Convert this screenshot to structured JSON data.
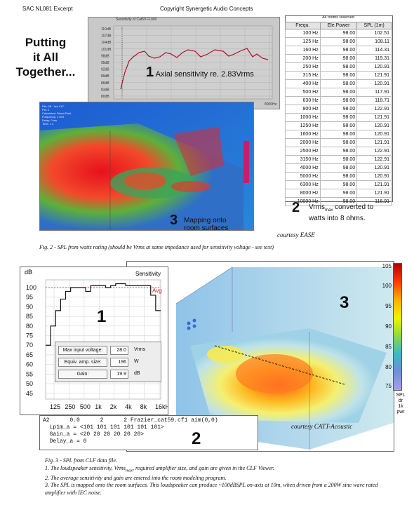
{
  "header": {
    "left": "SAC NL081 Excerpt",
    "right": "Copyright Synergetic Audio Concepts"
  },
  "side_title": [
    "Putting",
    "it All",
    "Together..."
  ],
  "axial_chart": {
    "title": "Sensitivity of Cat59 F1000",
    "number": "1",
    "label": "Axial sensitivity re. 2.83Vrms",
    "y_ticks": [
      "110dB",
      "107dB",
      "104dB",
      "101dB",
      "98dB",
      "95dB",
      "92dB",
      "89dB",
      "86dB",
      "83dB",
      "80dB"
    ],
    "x_ticks": [
      "125Hz",
      "250Hz",
      "500Hz",
      "1000Hz",
      "2000Hz",
      "4000Hz",
      "8000Hz"
    ]
  },
  "ease_map": {
    "number": "3",
    "caption": [
      "Mapping onto",
      "room surfaces"
    ],
    "info_lines": [
      "File: 08 : Yes CLF",
      "Pct: 2",
      "Calculated: Direct Field",
      "Frequency: 1 kHz",
      "Delay: 0 ms",
      "Time: 1 s"
    ]
  },
  "spl_table": {
    "title": "All rooms reserved",
    "columns": [
      "Frequ.",
      "Ele.Power",
      "SPL (1m)"
    ],
    "rows": [
      [
        "100 Hz",
        "98.00",
        "102.51"
      ],
      [
        "125 Hz",
        "98.00",
        "108.11"
      ],
      [
        "160 Hz",
        "98.00",
        "114.31"
      ],
      [
        "200 Hz",
        "98.00",
        "119.31"
      ],
      [
        "250 Hz",
        "98.00",
        "120.91"
      ],
      [
        "315 Hz",
        "98.00",
        "121.91"
      ],
      [
        "400 Hz",
        "98.00",
        "120.91"
      ],
      [
        "500 Hz",
        "98.00",
        "117.91"
      ],
      [
        "630 Hz",
        "98.00",
        "118.71"
      ],
      [
        "800 Hz",
        "98.00",
        "122.91"
      ],
      [
        "1000 Hz",
        "98.00",
        "121.91"
      ],
      [
        "1250 Hz",
        "98.00",
        "120.91"
      ],
      [
        "1600 Hz",
        "98.00",
        "120.91"
      ],
      [
        "2000 Hz",
        "98.00",
        "121.91"
      ],
      [
        "2500 Hz",
        "98.00",
        "122.91"
      ],
      [
        "3150 Hz",
        "98.00",
        "122.91"
      ],
      [
        "4000 Hz",
        "98.00",
        "120.91"
      ],
      [
        "5000 Hz",
        "98.00",
        "120.91"
      ],
      [
        "6300 Hz",
        "98.00",
        "121.91"
      ],
      [
        "8000 Hz",
        "98.00",
        "121.91"
      ],
      [
        "10000 Hz",
        "98.00",
        "116.91"
      ]
    ],
    "note_number": "2",
    "note_line1_pre": "Vrms",
    "note_line1_sub": "max",
    "note_line1_post": " converted to",
    "note_line2": "watts into 8 ohms."
  },
  "courtesy_ease": "courtesy EASE",
  "fig2_caption": "Fig. 2 - SPL from watts rating (should be Vrms at same impedance used for sensitivity voltage - see text)",
  "sensitivity_chart": {
    "dB_label": "dB",
    "title": "Sensitivity",
    "avg_label": "Avg",
    "number": "1",
    "y_ticks": [
      "100",
      "95",
      "90",
      "85",
      "80",
      "75",
      "70",
      "65",
      "60",
      "55",
      "50",
      "45"
    ],
    "x_ticks": [
      "125",
      "250",
      "500",
      "1k",
      "2k",
      "4k",
      "8k",
      "16kHz"
    ],
    "chart_data": {
      "type": "line",
      "x": [
        "100",
        "125",
        "160",
        "200",
        "250",
        "315",
        "400",
        "500",
        "630",
        "800",
        "1k",
        "1.25k",
        "1.6k",
        "2k",
        "2.5k",
        "3.15k",
        "4k",
        "5k",
        "6.3k",
        "8k",
        "10k",
        "12.5k",
        "16k"
      ],
      "series": [
        {
          "values": [
            70,
            80,
            88,
            94,
            98,
            100,
            100,
            100,
            98,
            101,
            101,
            101,
            100,
            101,
            102,
            102,
            101,
            101,
            101,
            101,
            101,
            96,
            88
          ]
        }
      ],
      "ylim": [
        42,
        104
      ],
      "avg": 100
    }
  },
  "clf_viewer": {
    "rows": [
      {
        "label": "Max input voltage:",
        "value": "28.0",
        "unit": "Vrms"
      },
      {
        "label": "Equiv. amp. size:",
        "value": "196",
        "unit": "W"
      },
      {
        "label": "Gain:",
        "value": "19.9",
        "unit": "dB"
      }
    ]
  },
  "clf_text": {
    "lines": [
      "A2      0.0      2      2 Frazier_cat59.cf1 aim(0,0)",
      "  Lp1m_a = <101 101 101 101 101 101>",
      "  Gain_a = <20 20 20 20 20 20>",
      "  Delay_a = 0"
    ],
    "number": "2"
  },
  "catt": {
    "number": "3",
    "courtesy": "courtesy CATT-Acoustic",
    "scale_ticks": [
      "105",
      "100",
      "95",
      "90",
      "85",
      "80",
      "75"
    ],
    "scale_units": [
      "SPL",
      "dr",
      "1k",
      "pwr"
    ]
  },
  "fig3": {
    "title": "Fig. 3 - SPL from CLF data file.",
    "line1_pre": "1. The loudspeaker sensitivity, Vrms",
    "line1_sub": "max",
    "line1_post": ", required amplifier size, and gain are given in the CLF Viewer.",
    "line2": "2. The average sensitivity and gain are entered into the room modeling program.",
    "line3": "3. The SPL is mapped onto the room surfaces. This loudspeaker can produce ~100dBSPL on-axis at 10m, when driven from a 200W sine wave rated amplifier with IEC noise."
  }
}
